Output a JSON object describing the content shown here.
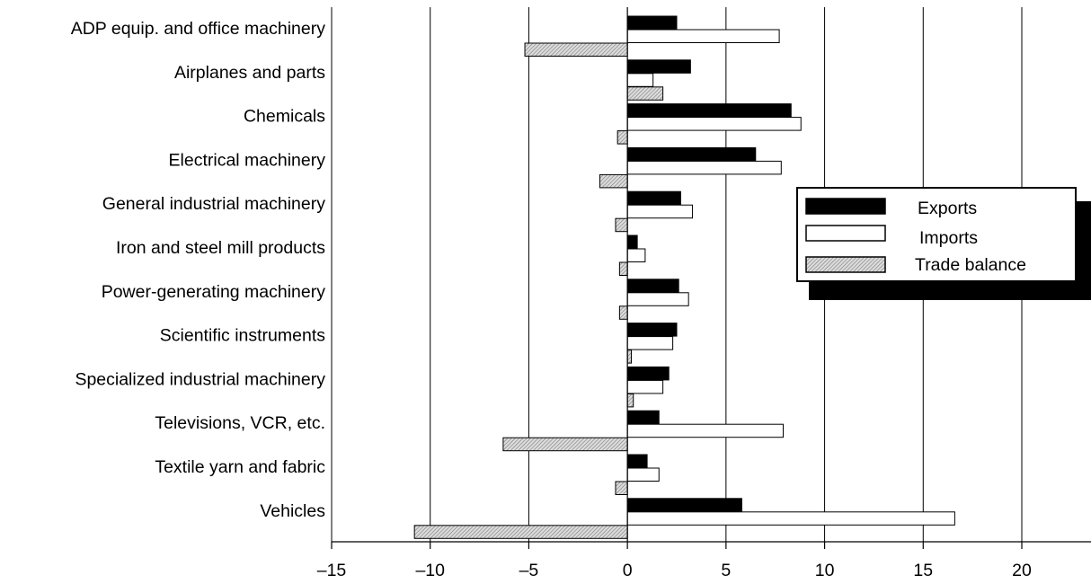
{
  "chart_data": {
    "type": "bar",
    "orientation": "horizontal",
    "categories": [
      "ADP equip. and office machinery",
      "Airplanes and parts",
      "Chemicals",
      "Electrical machinery",
      "General industrial machinery",
      "Iron and steel mill products",
      "Power-generating machinery",
      "Scientific instruments",
      "Specialized industrial machinery",
      "Televisions, VCR, etc.",
      "Textile yarn and fabric",
      "Vehicles"
    ],
    "series": [
      {
        "name": "Exports",
        "color": "#000000",
        "fill": "solid",
        "values": [
          2.5,
          3.2,
          8.3,
          6.5,
          2.7,
          0.5,
          2.6,
          2.5,
          2.1,
          1.6,
          1.0,
          5.8
        ]
      },
      {
        "name": "Imports",
        "color": "#ffffff",
        "fill": "outline",
        "values": [
          7.7,
          1.3,
          8.8,
          7.8,
          3.3,
          0.9,
          3.1,
          2.3,
          1.8,
          7.9,
          1.6,
          16.6
        ]
      },
      {
        "name": "Trade balance",
        "color": "#c0c0c0",
        "fill": "hatched",
        "values": [
          -5.2,
          1.8,
          -0.5,
          -1.4,
          -0.6,
          -0.4,
          -0.4,
          0.2,
          0.3,
          -6.3,
          -0.6,
          -10.8
        ]
      }
    ],
    "x_ticks": [
      "–15",
      "–10",
      "–5",
      "0",
      "5",
      "10",
      "15",
      "20"
    ],
    "x_tick_values": [
      -15,
      -10,
      -5,
      0,
      5,
      10,
      15,
      20
    ],
    "xlim": [
      -15,
      20
    ],
    "grid": "vertical",
    "legend_placement": "right",
    "title": "",
    "xlabel": "",
    "ylabel": ""
  }
}
